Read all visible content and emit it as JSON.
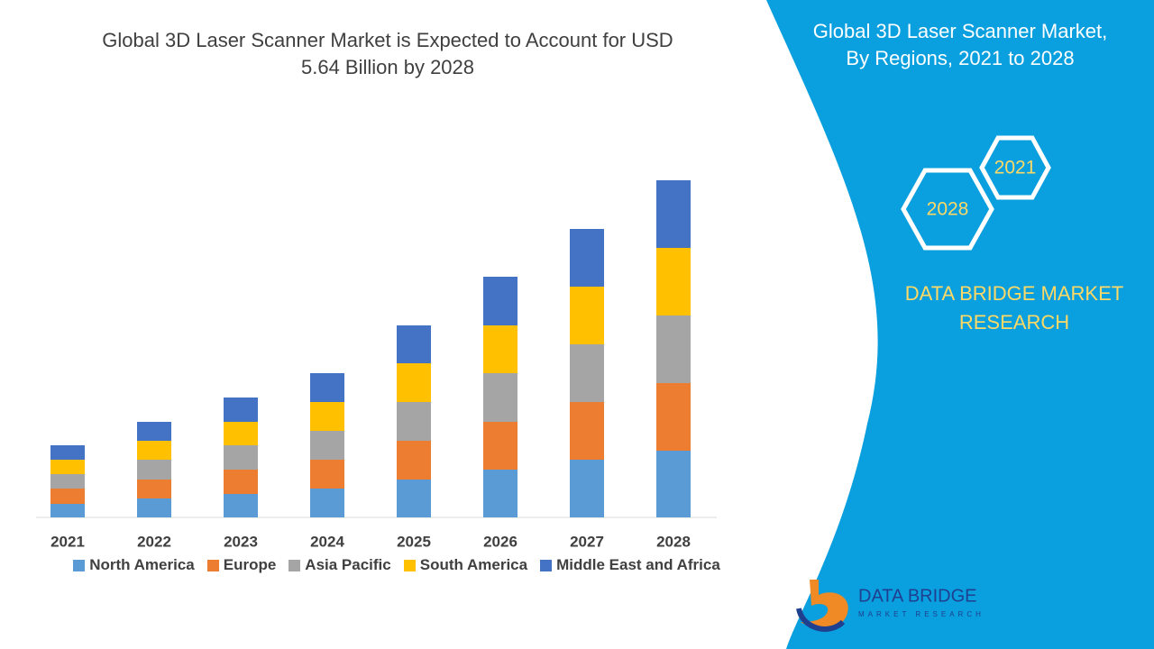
{
  "chart_data": {
    "type": "bar",
    "stacked": true,
    "title": "Global 3D Laser Scanner Market is Expected to Account for USD 5.64 Billion by 2028",
    "categories": [
      "2021",
      "2022",
      "2023",
      "2024",
      "2025",
      "2026",
      "2027",
      "2028"
    ],
    "series": [
      {
        "name": "North America",
        "color": "#5b9bd5",
        "values": [
          15,
          21,
          26,
          32,
          42,
          53,
          64,
          74
        ]
      },
      {
        "name": "Europe",
        "color": "#ed7d31",
        "values": [
          17,
          21,
          27,
          32,
          43,
          53,
          64,
          75
        ]
      },
      {
        "name": "Asia Pacific",
        "color": "#a5a5a5",
        "values": [
          16,
          22,
          27,
          32,
          43,
          54,
          64,
          75
        ]
      },
      {
        "name": "South America",
        "color": "#ffc000",
        "values": [
          16,
          21,
          26,
          32,
          43,
          53,
          64,
          75
        ]
      },
      {
        "name": "Middle East and Africa",
        "color": "#4472c4",
        "values": [
          16,
          21,
          27,
          32,
          42,
          54,
          64,
          75
        ]
      }
    ],
    "ylim": [
      0,
      400
    ]
  },
  "panel": {
    "title": "Global 3D Laser Scanner Market, By Regions, 2021 to 2028",
    "hex_labels": [
      "2021",
      "2028"
    ],
    "brand": "DATA BRIDGE MARKET RESEARCH",
    "logo": "DATA BRIDGE",
    "logo_sub": "MARKET RESEARCH"
  }
}
